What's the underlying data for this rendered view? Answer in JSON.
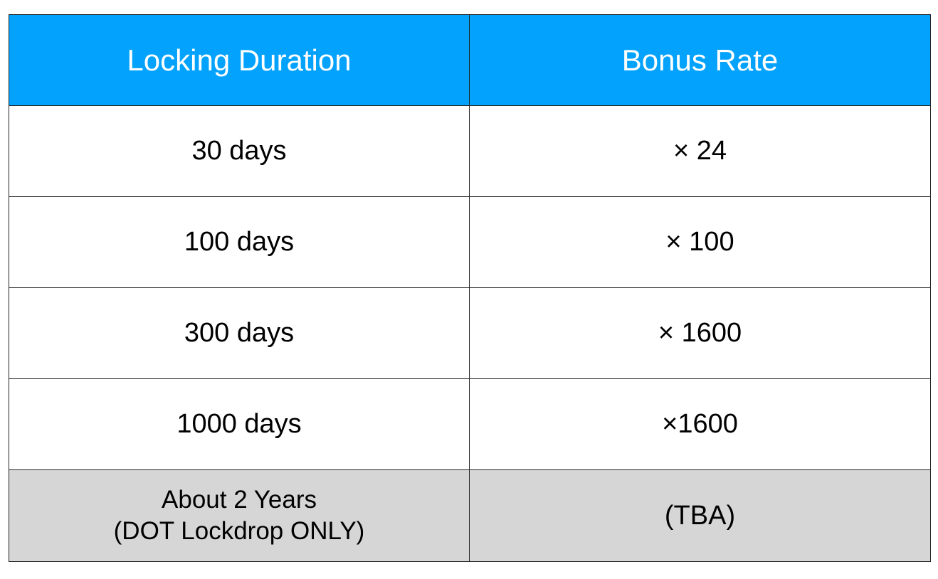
{
  "table": {
    "headers": {
      "duration": "Locking Duration",
      "rate": "Bonus Rate"
    },
    "rows": [
      {
        "duration": "30 days",
        "rate": "× 24"
      },
      {
        "duration": "100 days",
        "rate": "× 100"
      },
      {
        "duration": "300 days",
        "rate": "× 1600"
      },
      {
        "duration": "1000 days",
        "rate": "×1600"
      }
    ],
    "last_row": {
      "duration_line1": "About 2 Years",
      "duration_line2": "(DOT Lockdrop ONLY)",
      "rate": "(TBA)"
    }
  },
  "colors": {
    "header_background": "#03a2fc",
    "header_text": "#ffffff",
    "last_row_background": "#d6d6d6",
    "border": "#222222"
  }
}
